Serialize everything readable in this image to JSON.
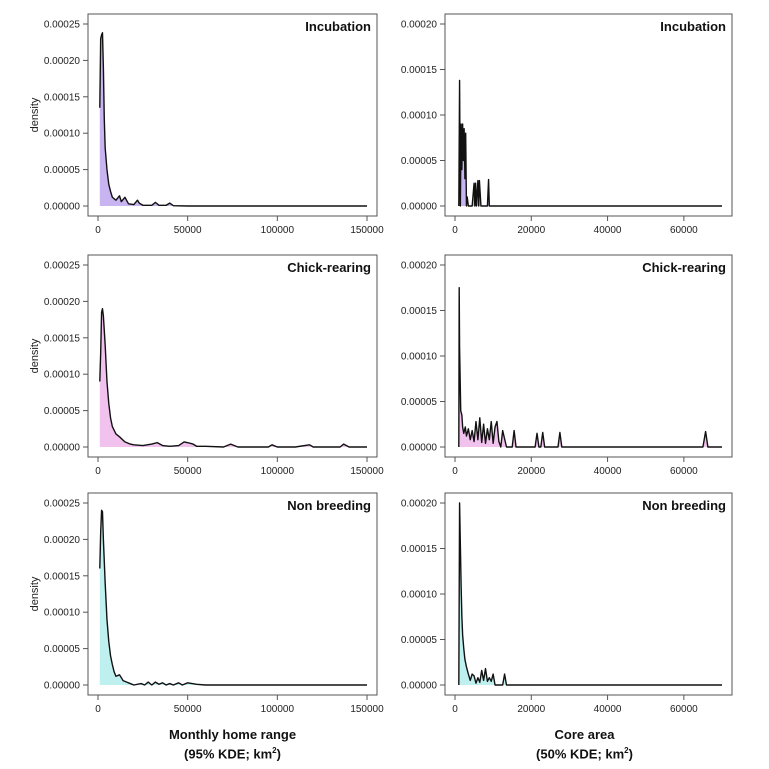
{
  "chart_data": [
    {
      "type": "area",
      "title": "Incubation",
      "ylabel": "density",
      "xlabel": "",
      "xlim": [
        0,
        150000
      ],
      "ylim": [
        0,
        0.00025
      ],
      "xticks": [
        "0",
        "50000",
        "100000",
        "150000"
      ],
      "yticks": [
        "0.00000",
        "0.00005",
        "0.00010",
        "0.00015",
        "0.00020",
        "0.00025"
      ],
      "fill_color": "#c8b4f0",
      "x": [
        1000,
        1500,
        2000,
        2500,
        3000,
        3500,
        4000,
        5000,
        6000,
        7000,
        8000,
        10000,
        12000,
        13000,
        15000,
        17000,
        20000,
        22000,
        23000,
        25000,
        30000,
        32000,
        34000,
        38000,
        40000,
        42000,
        50000,
        150000
      ],
      "y": [
        0.000135,
        0.00023,
        0.000235,
        0.000238,
        0.00019,
        0.00012,
        8e-05,
        5e-05,
        3e-05,
        2e-05,
        1.2e-05,
        8e-06,
        1.4e-05,
        6e-06,
        1.2e-05,
        3e-06,
        2e-06,
        8e-06,
        4e-06,
        1e-06,
        1e-06,
        5e-06,
        1e-06,
        1e-06,
        4e-06,
        5e-07,
        0.0,
        0.0
      ]
    },
    {
      "type": "area",
      "title": "Incubation",
      "ylabel": "",
      "xlabel": "",
      "xlim": [
        0,
        70000
      ],
      "ylim": [
        0,
        0.0002
      ],
      "xticks": [
        "0",
        "20000",
        "40000",
        "60000"
      ],
      "yticks": [
        "0.00000",
        "0.00005",
        "0.00010",
        "0.00015",
        "0.00020"
      ],
      "fill_color": "#c8b4f0",
      "x": [
        1000,
        1200,
        1400,
        1600,
        1800,
        2000,
        2200,
        2400,
        2600,
        2800,
        3000,
        3200,
        3500,
        4000,
        4500,
        5000,
        5200,
        5400,
        5600,
        6000,
        6200,
        6400,
        6800,
        7000,
        7500,
        8500,
        8800,
        9000,
        9200,
        10000,
        70000
      ],
      "y": [
        0.0,
        0.000138,
        0.0,
        9e-05,
        4e-05,
        9e-05,
        5e-05,
        8.5e-05,
        3e-05,
        8e-05,
        0.0,
        1e-05,
        0.0,
        0.0,
        0.0,
        2.5e-05,
        0.0,
        2.5e-05,
        0.0,
        2.8e-05,
        0.0,
        2.8e-05,
        0.0,
        0.0,
        0.0,
        0.0,
        2.9e-05,
        0.0,
        0.0,
        0.0,
        0.0
      ]
    },
    {
      "type": "area",
      "title": "Chick-rearing",
      "ylabel": "density",
      "xlabel": "",
      "xlim": [
        0,
        150000
      ],
      "ylim": [
        0,
        0.00025
      ],
      "xticks": [
        "0",
        "50000",
        "100000",
        "150000"
      ],
      "yticks": [
        "0.00000",
        "0.00005",
        "0.00010",
        "0.00015",
        "0.00020",
        "0.00025"
      ],
      "fill_color": "#f2c2ef",
      "x": [
        1000,
        1500,
        2000,
        2500,
        3000,
        4000,
        5000,
        6000,
        7000,
        8000,
        10000,
        12000,
        15000,
        18000,
        20000,
        25000,
        30000,
        33000,
        36000,
        40000,
        45000,
        48000,
        50000,
        53000,
        55000,
        60000,
        70000,
        74000,
        78000,
        85000,
        95000,
        97000,
        100000,
        110000,
        118000,
        120000,
        125000,
        135000,
        137000,
        140000,
        150000
      ],
      "y": [
        9e-05,
        0.00013,
        0.000185,
        0.00019,
        0.00018,
        0.00014,
        9e-05,
        6e-05,
        4e-05,
        2.8e-05,
        1.8e-05,
        1.4e-05,
        7e-06,
        4e-06,
        3e-06,
        2e-06,
        4e-06,
        6e-06,
        2e-06,
        1e-06,
        2e-06,
        7e-06,
        6e-06,
        4e-06,
        1e-06,
        1e-06,
        0.0,
        4e-06,
        0.0,
        0.0,
        0.0,
        3e-06,
        0.0,
        0.0,
        3e-06,
        0.0,
        0.0,
        0.0,
        4e-06,
        0.0,
        0.0
      ]
    },
    {
      "type": "area",
      "title": "Chick-rearing",
      "ylabel": "",
      "xlabel": "",
      "xlim": [
        0,
        70000
      ],
      "ylim": [
        0,
        0.0002
      ],
      "xticks": [
        "0",
        "20000",
        "40000",
        "60000"
      ],
      "yticks": [
        "0.00000",
        "0.00005",
        "0.00010",
        "0.00015",
        "0.00020"
      ],
      "fill_color": "#f2c2ef",
      "x": [
        1000,
        1100,
        1200,
        1500,
        1800,
        2000,
        2300,
        2700,
        3000,
        3500,
        4000,
        4500,
        5000,
        5500,
        6000,
        6500,
        7000,
        7500,
        8000,
        8500,
        9000,
        9500,
        10000,
        10500,
        11000,
        11500,
        12000,
        12500,
        13500,
        14000,
        15000,
        15500,
        16000,
        21000,
        21500,
        22000,
        22500,
        23000,
        23500,
        27000,
        27500,
        28000,
        65000,
        65700,
        66300,
        70000
      ],
      "y": [
        0.0,
        0.000175,
        0.00011,
        4e-05,
        3.5e-05,
        2.2e-05,
        1.5e-05,
        2.2e-05,
        1.2e-05,
        2e-05,
        8e-06,
        1.8e-05,
        6e-06,
        2.8e-05,
        8e-06,
        3.2e-05,
        5e-06,
        2.5e-05,
        4e-06,
        2e-05,
        8e-06,
        2.8e-05,
        4e-06,
        2.2e-05,
        2.8e-05,
        6e-06,
        0.0,
        1.8e-05,
        0.0,
        0.0,
        0.0,
        1.8e-05,
        0.0,
        0.0,
        1.5e-05,
        0.0,
        0.0,
        1.6e-05,
        0.0,
        0.0,
        1.6e-05,
        0.0,
        0.0,
        1.7e-05,
        0.0,
        0.0
      ]
    },
    {
      "type": "area",
      "title": "Non breeding",
      "ylabel": "density",
      "xlabel": "",
      "xlim": [
        0,
        150000
      ],
      "ylim": [
        0,
        0.00025
      ],
      "xticks": [
        "0",
        "50000",
        "100000",
        "150000"
      ],
      "yticks": [
        "0.00000",
        "0.00005",
        "0.00010",
        "0.00015",
        "0.00020",
        "0.00025"
      ],
      "fill_color": "#bff0f0",
      "x": [
        1000,
        1500,
        2000,
        2500,
        3000,
        4000,
        5000,
        6000,
        7000,
        8000,
        9000,
        10000,
        12000,
        14000,
        16000,
        18000,
        20000,
        24000,
        26000,
        28000,
        30000,
        32000,
        34000,
        36000,
        38000,
        40000,
        42000,
        45000,
        47000,
        50000,
        55000,
        60000,
        150000
      ],
      "y": [
        0.00016,
        0.00021,
        0.00024,
        0.000238,
        0.0002,
        0.00014,
        9e-05,
        6e-05,
        4e-05,
        2.8e-05,
        1.8e-05,
        1.2e-05,
        1.4e-05,
        6e-06,
        4e-06,
        2e-06,
        0.0,
        2e-06,
        0.0,
        4e-06,
        0.0,
        4e-06,
        1e-06,
        3e-06,
        0.0,
        2e-06,
        0.0,
        3e-06,
        0.0,
        3e-06,
        1e-06,
        0.0,
        0.0
      ]
    },
    {
      "type": "area",
      "title": "Non breeding",
      "ylabel": "",
      "xlabel": "",
      "xlim": [
        0,
        70000
      ],
      "ylim": [
        0,
        0.0002
      ],
      "xticks": [
        "0",
        "20000",
        "40000",
        "60000"
      ],
      "yticks": [
        "0.00000",
        "0.00005",
        "0.00010",
        "0.00015",
        "0.00020"
      ],
      "fill_color": "#bff0f0",
      "x": [
        1000,
        1200,
        1400,
        1600,
        1800,
        2000,
        2300,
        2600,
        3000,
        3500,
        4000,
        4500,
        5000,
        5500,
        6000,
        6500,
        7000,
        7500,
        8000,
        8500,
        9000,
        9500,
        10000,
        10500,
        12500,
        13000,
        13500,
        14000,
        70000
      ],
      "y": [
        0.0,
        0.0002,
        0.000155,
        0.00011,
        7.5e-05,
        5.5e-05,
        4e-05,
        2.8e-05,
        2e-05,
        1.2e-05,
        5e-06,
        1.2e-05,
        1e-05,
        2e-06,
        8e-06,
        3e-06,
        1.6e-05,
        5e-06,
        1.8e-05,
        4e-06,
        8e-06,
        4e-06,
        1.2e-05,
        0.0,
        0.0,
        1.2e-05,
        0.0,
        0.0,
        0.0
      ]
    }
  ],
  "xaxis_titles": {
    "left_line1": "Monthly home range",
    "left_line2": "(95% KDE; km",
    "left_sup": "2",
    "left_end": ")",
    "right_line1": "Core area",
    "right_line2": "(50% KDE; km",
    "right_sup": "2",
    "right_end": ")"
  },
  "colors": {
    "line": "#111111",
    "axis": "#555555",
    "incubation_fill": "#c8b4f0",
    "chick_rearing_fill": "#f2c2ef",
    "non_breeding_fill": "#bff0f0"
  }
}
